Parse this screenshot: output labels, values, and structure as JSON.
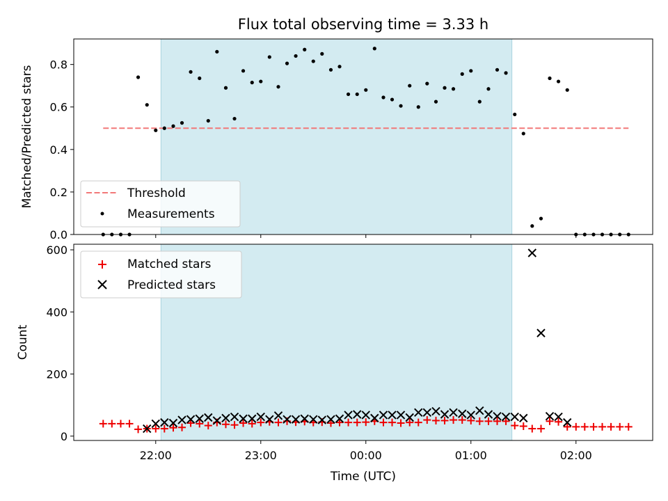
{
  "figure": {
    "title": "Flux total observing time = 3.33 h",
    "xlabel": "Time (UTC)",
    "x_ticks": [
      "22:00",
      "23:00",
      "00:00",
      "01:00",
      "02:00"
    ],
    "x_tick_hours": [
      22,
      23,
      24,
      25,
      26
    ],
    "xlim_hours": [
      21.22,
      26.73
    ],
    "shaded_span_hours": [
      22.05,
      25.39
    ],
    "shade_color": "#d3ebf1",
    "threshold_color": "#f27878",
    "matched_color": "#ee0000",
    "predicted_color": "#000000",
    "measure_color": "#000000"
  },
  "chart_data": [
    {
      "type": "scatter",
      "ylabel": "Matched/Predicted stars",
      "ylim": [
        0,
        0.92
      ],
      "y_ticks": [
        0.0,
        0.2,
        0.4,
        0.6,
        0.8
      ],
      "y_tick_labels": [
        "0.0",
        "0.2",
        "0.4",
        "0.6",
        "0.8"
      ],
      "legend_position": "lower-left",
      "legend": {
        "threshold": "Threshold",
        "measurements": "Measurements"
      },
      "threshold": {
        "value": 0.5,
        "x_range_hours": [
          21.5,
          26.5
        ]
      },
      "measurements": {
        "x_hours": [
          21.5,
          21.583,
          21.667,
          21.75,
          21.833,
          21.917,
          22.0,
          22.083,
          22.167,
          22.25,
          22.333,
          22.417,
          22.5,
          22.583,
          22.667,
          22.75,
          22.833,
          22.917,
          23.0,
          23.083,
          23.167,
          23.25,
          23.333,
          23.417,
          23.5,
          23.583,
          23.667,
          23.75,
          23.833,
          23.917,
          24.0,
          24.083,
          24.167,
          24.25,
          24.333,
          24.417,
          24.5,
          24.583,
          24.667,
          24.75,
          24.833,
          24.917,
          25.0,
          25.083,
          25.167,
          25.25,
          25.333,
          25.417,
          25.5,
          25.583,
          25.667,
          25.75,
          25.833,
          25.917,
          26.0,
          26.083,
          26.167,
          26.25,
          26.333,
          26.417,
          26.5
        ],
        "y": [
          0.0,
          0.0,
          0.0,
          0.0,
          0.74,
          0.61,
          0.49,
          0.5,
          0.51,
          0.525,
          0.765,
          0.735,
          0.535,
          0.86,
          0.69,
          0.545,
          0.77,
          0.715,
          0.72,
          0.835,
          0.695,
          0.805,
          0.84,
          0.87,
          0.815,
          0.85,
          0.775,
          0.79,
          0.66,
          0.66,
          0.68,
          0.875,
          0.645,
          0.635,
          0.605,
          0.7,
          0.6,
          0.71,
          0.625,
          0.69,
          0.685,
          0.755,
          0.77,
          0.625,
          0.685,
          0.775,
          0.76,
          0.565,
          0.475,
          0.04,
          0.075,
          0.735,
          0.72,
          0.68,
          0.0,
          0.0,
          0.0,
          0.0,
          0.0,
          0.0,
          0.0
        ]
      }
    },
    {
      "type": "scatter",
      "ylabel": "Count",
      "ylim": [
        -14,
        618
      ],
      "y_ticks": [
        0,
        200,
        400,
        600
      ],
      "y_tick_labels": [
        "0",
        "200",
        "400",
        "600"
      ],
      "legend_position": "upper-left",
      "series": [
        {
          "name": "Matched stars",
          "marker": "plus",
          "x_hours": [
            21.5,
            21.583,
            21.667,
            21.75,
            21.833,
            21.917,
            22.0,
            22.083,
            22.167,
            22.25,
            22.333,
            22.417,
            22.5,
            22.583,
            22.667,
            22.75,
            22.833,
            22.917,
            23.0,
            23.083,
            23.167,
            23.25,
            23.333,
            23.417,
            23.5,
            23.583,
            23.667,
            23.75,
            23.833,
            23.917,
            24.0,
            24.083,
            24.167,
            24.25,
            24.333,
            24.417,
            24.5,
            24.583,
            24.667,
            24.75,
            24.833,
            24.917,
            25.0,
            25.083,
            25.167,
            25.25,
            25.333,
            25.417,
            25.5,
            25.583,
            25.667,
            25.75,
            25.833,
            25.917,
            26.0,
            26.083,
            26.167,
            26.25,
            26.333,
            26.417,
            26.5
          ],
          "values": [
            40,
            40,
            40,
            40,
            22,
            24,
            24,
            24,
            27,
            28,
            42,
            40,
            34,
            44,
            38,
            36,
            42,
            40,
            44,
            46,
            44,
            48,
            45,
            47,
            44,
            45,
            42,
            44,
            44,
            44,
            45,
            48,
            44,
            44,
            42,
            44,
            44,
            52,
            50,
            50,
            52,
            52,
            50,
            48,
            48,
            48,
            48,
            34,
            32,
            24,
            24,
            48,
            46,
            30,
            30,
            30,
            30,
            30,
            30,
            30,
            30
          ]
        },
        {
          "name": "Predicted stars",
          "marker": "x",
          "x_hours": [
            21.917,
            22.0,
            22.083,
            22.167,
            22.25,
            22.333,
            22.417,
            22.5,
            22.583,
            22.667,
            22.75,
            22.833,
            22.917,
            23.0,
            23.083,
            23.167,
            23.25,
            23.333,
            23.417,
            23.5,
            23.583,
            23.667,
            23.75,
            23.833,
            23.917,
            24.0,
            24.083,
            24.167,
            24.25,
            24.333,
            24.417,
            24.5,
            24.583,
            24.667,
            24.75,
            24.833,
            24.917,
            25.0,
            25.083,
            25.167,
            25.25,
            25.333,
            25.417,
            25.5,
            25.583,
            25.667,
            25.75,
            25.833,
            25.917
          ],
          "values": [
            24,
            40,
            44,
            42,
            52,
            54,
            56,
            60,
            50,
            58,
            62,
            56,
            56,
            62,
            54,
            66,
            54,
            54,
            56,
            54,
            52,
            54,
            56,
            68,
            70,
            68,
            58,
            68,
            68,
            68,
            60,
            76,
            76,
            80,
            70,
            76,
            72,
            68,
            82,
            70,
            64,
            62,
            62,
            58,
            590,
            332,
            64,
            62,
            44
          ]
        }
      ]
    }
  ]
}
